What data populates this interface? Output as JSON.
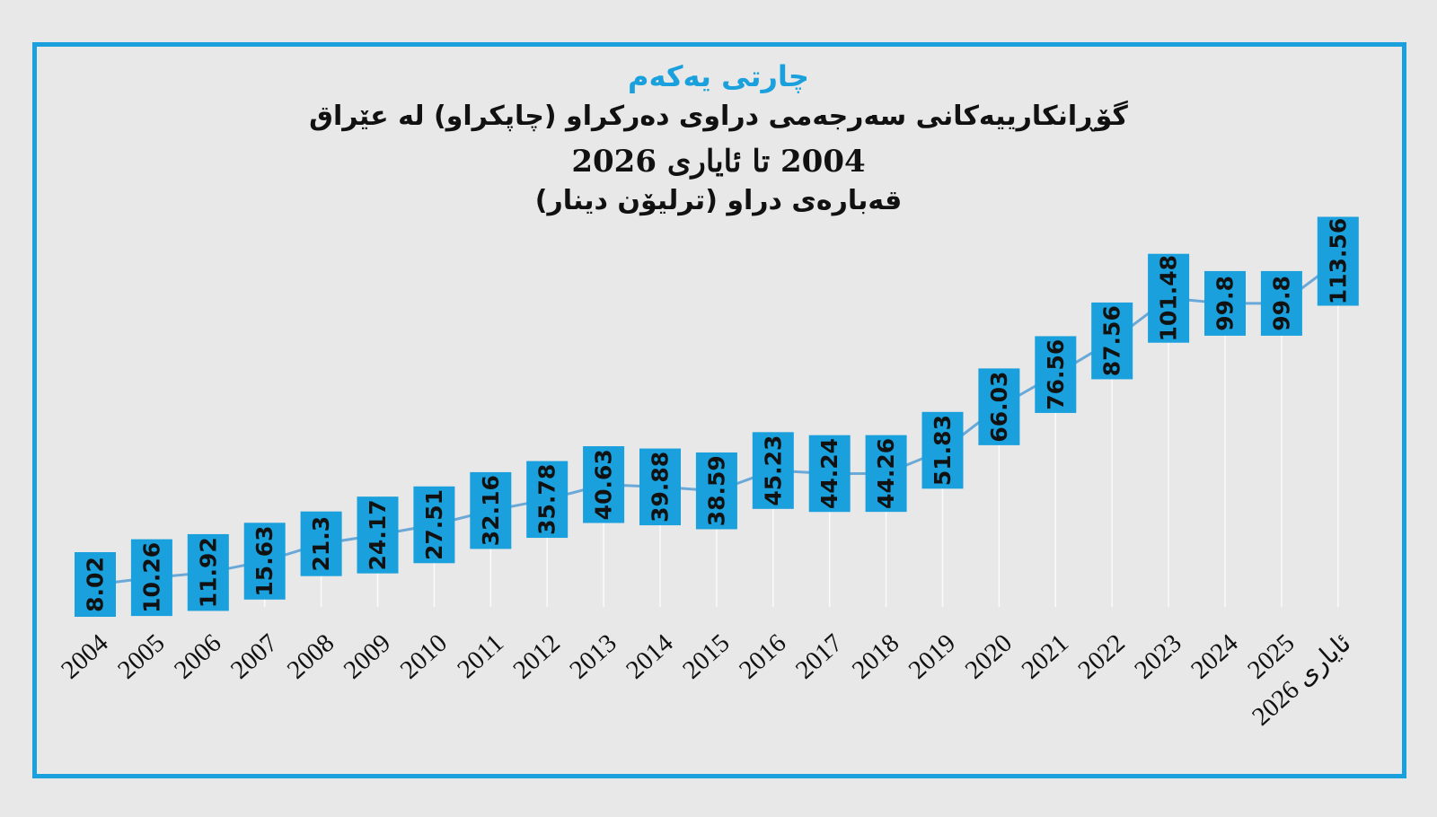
{
  "chart_label": "چارتی یەکەم",
  "title_lines": [
    "گۆڕانکارییەکانی سەرجەمی دراوی دەرکراو (چاپکراو) لە عێراق",
    "2004 تا ئایاری 2026",
    "قەبارەی دراو (ترلیۆن دینار)"
  ],
  "colors": {
    "accent": "#1aa0dc",
    "line": "#6aa8d8",
    "frame": "#1aa0dc"
  },
  "chart_data": {
    "type": "line",
    "title": "گۆڕانکارییەکانی سەرجەمی دراوی دەرکراو (چاپکراو) لە عێراق",
    "subtitle": "2004 تا ئایاری 2026",
    "ylabel": "قەبارەی دراو (ترلیۆن دینار)",
    "categories": [
      "2004",
      "2005",
      "2006",
      "2007",
      "2008",
      "2009",
      "2010",
      "2011",
      "2012",
      "2013",
      "2014",
      "2015",
      "2016",
      "2017",
      "2018",
      "2019",
      "2020",
      "2021",
      "2022",
      "2023",
      "2024",
      "2025",
      "ئایاری 2026"
    ],
    "values": [
      8.02,
      10.26,
      11.92,
      15.63,
      21.3,
      24.17,
      27.51,
      32.16,
      35.78,
      40.63,
      39.88,
      38.59,
      45.23,
      44.24,
      44.26,
      51.83,
      66.03,
      76.56,
      87.56,
      101.48,
      99.8,
      99.8,
      113.56
    ],
    "value_labels": [
      "8.02",
      "10.26",
      "11.92",
      "15.63",
      "21.3",
      "24.17",
      "27.51",
      "32.16",
      "35.78",
      "40.63",
      "39.88",
      "38.59",
      "45.23",
      "44.24",
      "44.26",
      "51.83",
      "66.03",
      "76.56",
      "87.56",
      "101.48",
      "99.8",
      "99.8",
      "113.56"
    ],
    "ylim": [
      0,
      113.56
    ],
    "grid": false,
    "legend": "none"
  }
}
